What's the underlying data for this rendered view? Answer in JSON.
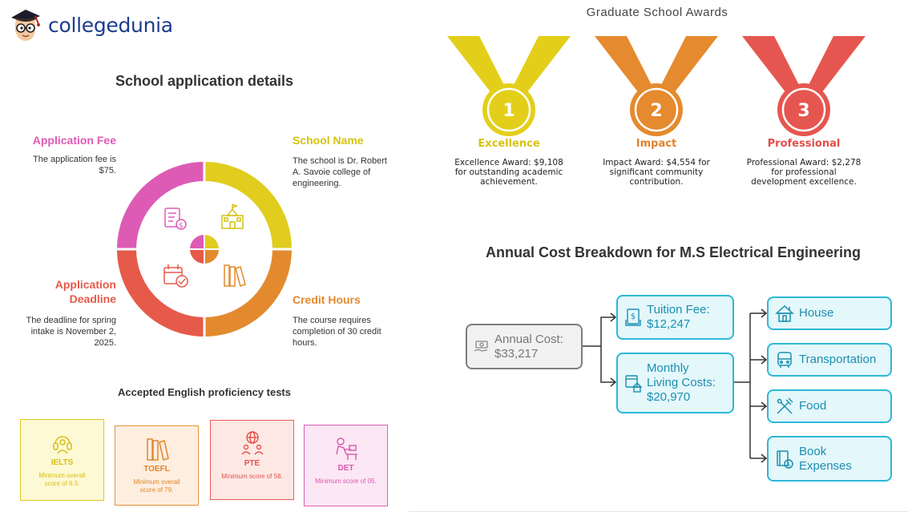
{
  "logo": {
    "text": "collegedunia"
  },
  "application": {
    "title": "School application details",
    "fee": {
      "heading": "Application Fee",
      "text": "The application fee is $75.",
      "color": "#dd5bb5"
    },
    "school": {
      "heading": "School Name",
      "text": "The school is Dr. Robert A. Savoie college of engineering.",
      "color": "#d4c314"
    },
    "deadline": {
      "heading_line1": "Application",
      "heading_line2": "Deadline",
      "text": "The deadline for spring intake is November 2, 2025.",
      "color": "#e65a4a"
    },
    "credit": {
      "heading": "Credit Hours",
      "text": "The course requires completion of 30 credit hours.",
      "color": "#e38a2e"
    }
  },
  "tests": {
    "title": "Accepted English proficiency tests",
    "items": [
      {
        "name": "IELTS",
        "score": "Minimum overall score of 6.5.",
        "color": "#e0c718",
        "bg": "#fdf9d4"
      },
      {
        "name": "TOEFL",
        "score": "Minimum overall score of 79.",
        "color": "#e6923a",
        "bg": "#fdeee0"
      },
      {
        "name": "PTE",
        "score": "Minimum score of 58.",
        "color": "#e95c50",
        "bg": "#fde8e4"
      },
      {
        "name": "DET",
        "score": "Minimum score of 05.",
        "color": "#dc5fb8",
        "bg": "#fce7f4"
      }
    ]
  },
  "awards": {
    "title": "Graduate School Awards",
    "items": [
      {
        "num": "1",
        "name": "Excellence",
        "desc": "Excellence Award: $9,108 for outstanding academic achievement.",
        "color": "#e3cf1a"
      },
      {
        "num": "2",
        "name": "Impact",
        "desc": "Impact Award: $4,554 for significant community contribution.",
        "color": "#e58a2e"
      },
      {
        "num": "3",
        "name": "Professional",
        "desc": "Professional Award: $2,278 for professional development excellence.",
        "color": "#e65650"
      }
    ]
  },
  "cost": {
    "title": "Annual Cost Breakdown for M.S Electrical Engineering",
    "annual": {
      "line1": "Annual Cost:",
      "line2": "$33,217"
    },
    "tuition": {
      "line1": "Tuition Fee:",
      "line2": "$12,247"
    },
    "living": {
      "line1": "Monthly",
      "line2": "Living Costs:",
      "line3": "$20,970"
    },
    "house": "House",
    "transportation": "Transportation",
    "food": "Food",
    "book": {
      "line1": "Book",
      "line2": "Expenses"
    }
  }
}
